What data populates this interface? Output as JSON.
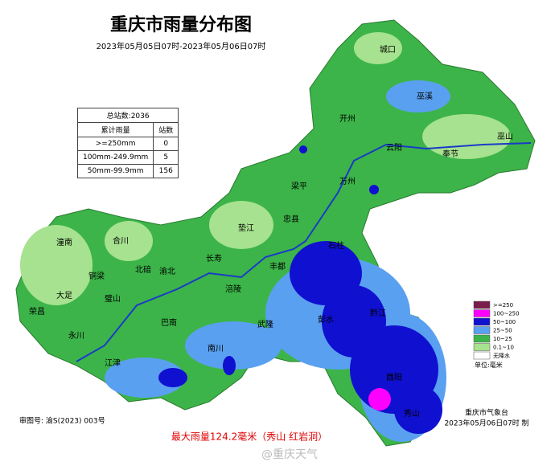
{
  "header": {
    "title": "重庆市雨量分布图",
    "subtitle": "2023年05月05日07时-2023年05月06日07时"
  },
  "table": {
    "title": "总站数:2036",
    "columns": [
      "累计雨量",
      "站数"
    ],
    "rows": [
      [
        ">=250mm",
        0
      ],
      [
        "100mm-249.9mm",
        5
      ],
      [
        "50mm-99.9mm",
        156
      ]
    ]
  },
  "legend": {
    "items": [
      {
        "label": ">=250",
        "color": "#7a1c4c"
      },
      {
        "label": "100~250",
        "color": "#ff00ff"
      },
      {
        "label": "50~100",
        "color": "#1010d0"
      },
      {
        "label": "25~50",
        "color": "#5aa0f0"
      },
      {
        "label": "10~25",
        "color": "#3cb449"
      },
      {
        "label": "0.1~10",
        "color": "#a6e28f"
      },
      {
        "label": "无降水",
        "color": "#ffffff"
      }
    ],
    "unit": "单位:毫米"
  },
  "districts": [
    "城口",
    "巫溪",
    "巫山",
    "奉节",
    "开州",
    "云阳",
    "万州",
    "梁平",
    "忠县",
    "垫江",
    "长寿",
    "潼南",
    "合川",
    "北碚",
    "渝北",
    "铜梁",
    "大足",
    "璧山",
    "荣昌",
    "永川",
    "江津",
    "巴南",
    "南川",
    "涪陵",
    "丰都",
    "石柱",
    "武隆",
    "彭水",
    "黔江",
    "酉阳",
    "秀山"
  ],
  "footer": {
    "map_number": "审图号: 渝S(2023) 003号",
    "max_rain": "最大雨量124.2毫米（秀山 红岩洞）",
    "agency": "重庆市气象台",
    "made": "2023年05月06日07时 制",
    "watermark": "@重庆天气"
  }
}
